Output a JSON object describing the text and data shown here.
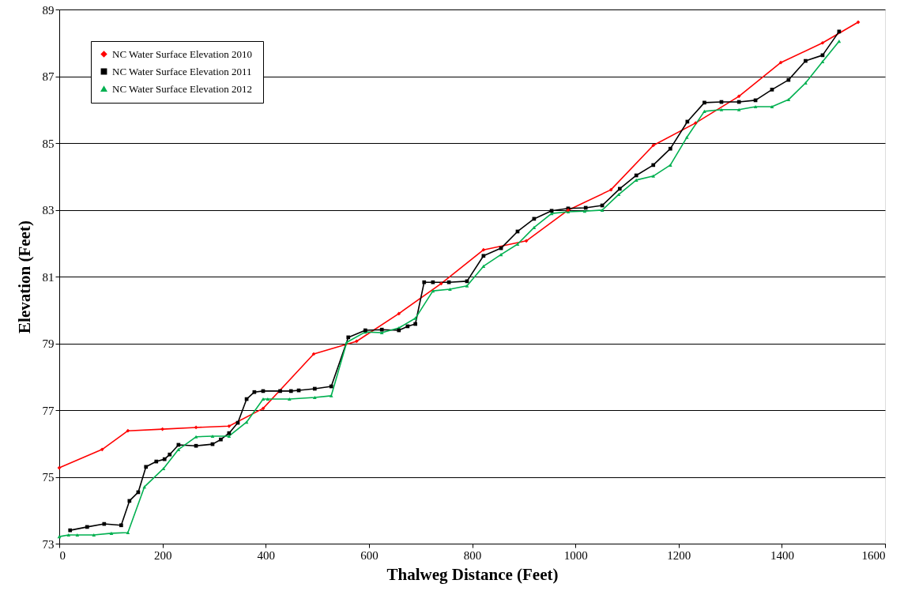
{
  "chart_data": {
    "type": "line",
    "xlabel": "Thalweg Distance (Feet)",
    "ylabel": "Elevation (Feet)",
    "xlim": [
      0,
      1600
    ],
    "xticks": [
      0,
      200,
      400,
      600,
      800,
      1000,
      1200,
      1400,
      1600
    ],
    "ylim": [
      73,
      89
    ],
    "yticks": [
      73,
      75,
      77,
      79,
      81,
      83,
      85,
      87,
      89
    ],
    "grid": "y",
    "legend": "top left",
    "line_style": "solid",
    "series": [
      {
        "name": "NC Water Surface Elevation  2010",
        "color": "#ff0000",
        "marker": "diamond",
        "x": [
          0,
          83,
          133,
          200,
          265,
          329,
          395,
          493,
          576,
          658,
          740,
          822,
          905,
          986,
          1069,
          1151,
          1233,
          1317,
          1398,
          1479,
          1548
        ],
        "values": [
          75.27,
          75.82,
          76.38,
          76.43,
          76.48,
          76.52,
          77.05,
          78.68,
          79.06,
          79.89,
          80.79,
          81.8,
          82.07,
          82.99,
          83.6,
          84.93,
          85.6,
          86.4,
          87.41,
          88.0,
          88.62
        ]
      },
      {
        "name": "NC Water Surface Elevation  2011",
        "color": "#000000",
        "marker": "square",
        "x": [
          21,
          54,
          87,
          120,
          136,
          153,
          168,
          188,
          204,
          214,
          231,
          265,
          297,
          313,
          329,
          346,
          363,
          378,
          395,
          428,
          449,
          464,
          495,
          527,
          560,
          593,
          625,
          658,
          675,
          690,
          707,
          724,
          755,
          790,
          822,
          856,
          888,
          920,
          954,
          986,
          1020,
          1052,
          1086,
          1118,
          1151,
          1184,
          1217,
          1250,
          1283,
          1317,
          1349,
          1381,
          1413,
          1446,
          1479,
          1511
        ],
        "values": [
          73.4,
          73.5,
          73.59,
          73.55,
          74.28,
          74.54,
          75.3,
          75.46,
          75.53,
          75.67,
          75.96,
          75.93,
          75.98,
          76.12,
          76.31,
          76.62,
          77.33,
          77.54,
          77.57,
          77.57,
          77.57,
          77.59,
          77.64,
          77.71,
          79.18,
          79.39,
          79.41,
          79.39,
          79.51,
          79.58,
          80.83,
          80.83,
          80.83,
          80.86,
          81.62,
          81.85,
          82.35,
          82.73,
          82.97,
          83.04,
          83.06,
          83.13,
          83.63,
          84.03,
          84.34,
          84.83,
          85.64,
          86.21,
          86.23,
          86.23,
          86.28,
          86.6,
          86.89,
          87.46,
          87.63,
          88.34
        ]
      },
      {
        "name": "NC Water Surface Elevation  2012",
        "color": "#00b050",
        "marker": "triangle",
        "x": [
          0,
          18,
          35,
          67,
          101,
          133,
          165,
          202,
          231,
          265,
          297,
          329,
          363,
          395,
          404,
          446,
          495,
          527,
          557,
          593,
          625,
          658,
          690,
          724,
          757,
          790,
          822,
          856,
          888,
          920,
          954,
          986,
          1018,
          1052,
          1084,
          1118,
          1151,
          1184,
          1216,
          1250,
          1283,
          1317,
          1349,
          1381,
          1413,
          1446,
          1479,
          1511
        ],
        "values": [
          73.21,
          73.26,
          73.26,
          73.26,
          73.31,
          73.33,
          74.7,
          75.25,
          75.82,
          76.2,
          76.22,
          76.22,
          76.64,
          77.33,
          77.33,
          77.33,
          77.38,
          77.43,
          79.03,
          79.34,
          79.32,
          79.46,
          79.75,
          80.57,
          80.62,
          80.72,
          81.31,
          81.66,
          81.97,
          82.47,
          82.89,
          82.94,
          82.96,
          82.99,
          83.46,
          83.89,
          84.01,
          84.34,
          85.17,
          85.95,
          86.0,
          86.0,
          86.09,
          86.09,
          86.3,
          86.8,
          87.44,
          88.05
        ]
      }
    ]
  }
}
